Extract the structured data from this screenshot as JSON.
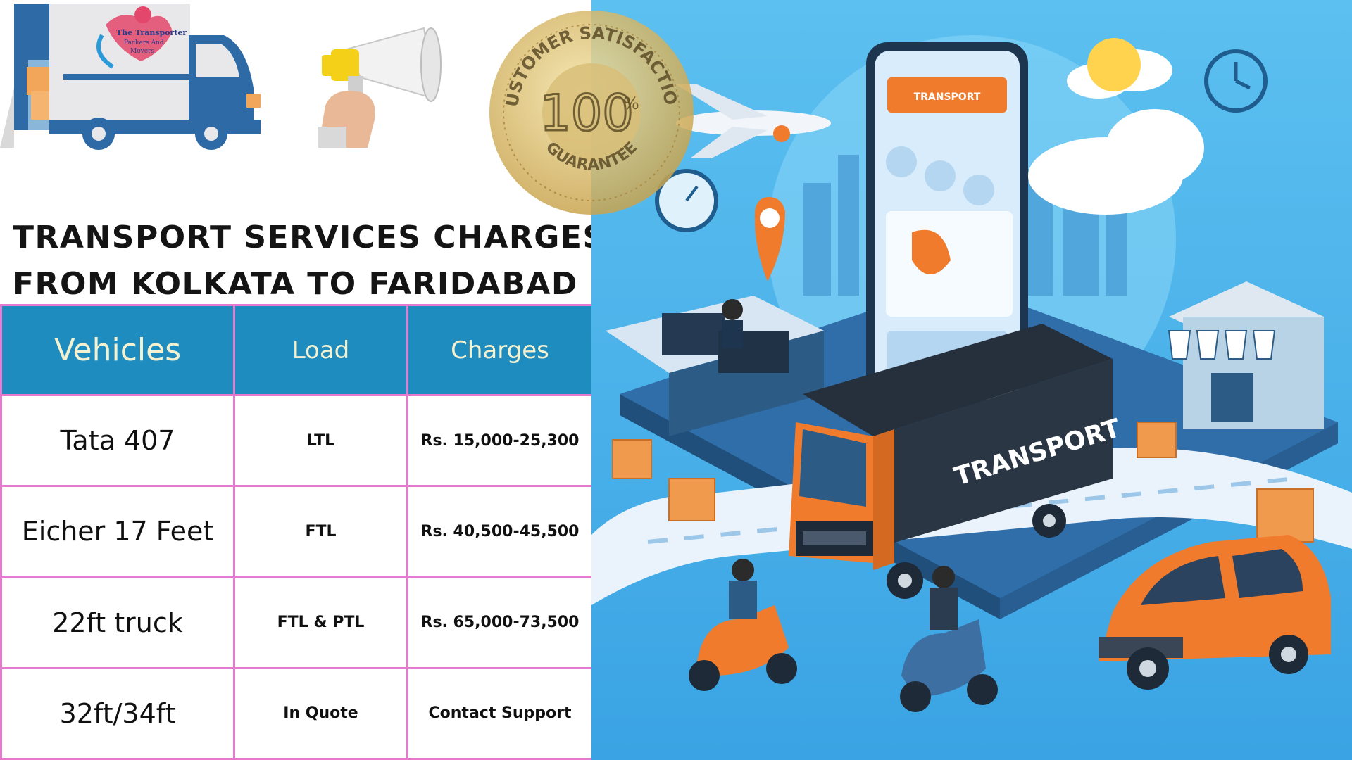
{
  "logo": {
    "line1": "The Transporter",
    "line2": "Packers And",
    "line3": "Movers"
  },
  "seal": {
    "top_text": "CUSTOMER SATISFACTION",
    "big": "100",
    "pct": "%",
    "bottom_text": "GUARANTEE"
  },
  "heading": {
    "line1": "Transport Services Charges",
    "line2": "from Kolkata to Faridabad"
  },
  "table": {
    "headers": [
      "Vehicles",
      "Load",
      "Charges"
    ],
    "rows": [
      {
        "vehicle": "Tata 407",
        "load": "LTL",
        "charges": "Rs. 15,000-25,300"
      },
      {
        "vehicle": "Eicher 17 Feet",
        "load": "FTL",
        "charges": "Rs. 40,500-45,500"
      },
      {
        "vehicle": "22ft truck",
        "load": "FTL & PTL",
        "charges": "Rs. 65,000-73,500"
      },
      {
        "vehicle": "32ft/34ft",
        "load": "In Quote",
        "charges": "Contact Support"
      }
    ]
  },
  "illustration": {
    "truck_text": "TRANSPORT",
    "phone_banner": "TRANSPORT"
  },
  "colors": {
    "table_header": "#1f8cc0",
    "table_border": "#e47bd0",
    "illustration_bg": "#4fb4ea",
    "accent_orange": "#f07b2c"
  }
}
